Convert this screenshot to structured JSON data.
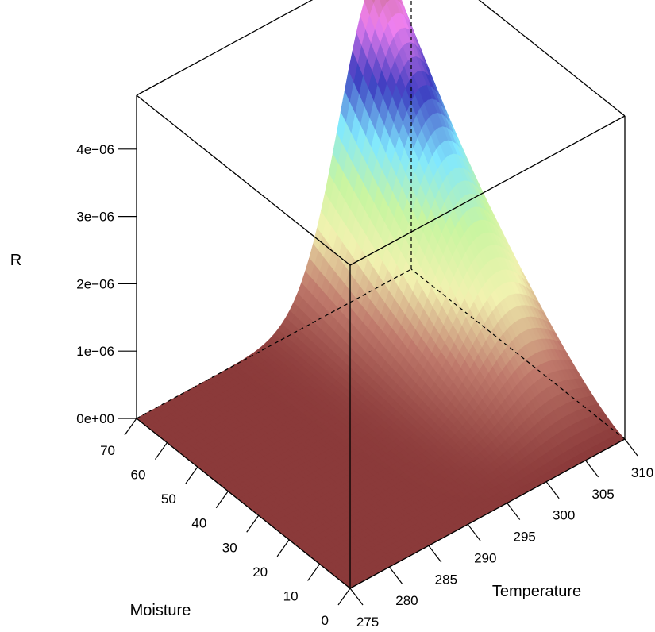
{
  "chart_data": {
    "type": "surface3d",
    "title": "",
    "x_axis": {
      "label": "Temperature",
      "range": [
        275,
        310
      ],
      "ticks": [
        275,
        280,
        285,
        290,
        295,
        300,
        305,
        310
      ],
      "tick_labels": [
        "275",
        "280",
        "285",
        "290",
        "295",
        "300",
        "305",
        "310"
      ]
    },
    "y_axis": {
      "label": "Moisture",
      "range": [
        0,
        70
      ],
      "ticks": [
        0,
        10,
        20,
        30,
        40,
        50,
        60,
        70
      ],
      "tick_labels": [
        "0",
        "10",
        "20",
        "30",
        "40",
        "50",
        "60",
        "70"
      ]
    },
    "z_axis": {
      "label": "R",
      "range": [
        0,
        4.8e-06
      ],
      "ticks": [
        0,
        1e-06,
        2e-06,
        3e-06,
        4e-06
      ],
      "tick_labels": [
        "0e+00",
        "1e−06",
        "2e−06",
        "3e−06",
        "4e−06"
      ]
    },
    "surface_peak": {
      "Temperature": 306,
      "Moisture": 70,
      "R": 4.7e-06
    },
    "colormap": [
      "#8b3a3a",
      "#c07a6c",
      "#f2f2b0",
      "#c8f5a0",
      "#80e8ff",
      "#3c3cc0",
      "#f080f0",
      "#b86a6a"
    ],
    "box_edge_color": "#000000"
  }
}
